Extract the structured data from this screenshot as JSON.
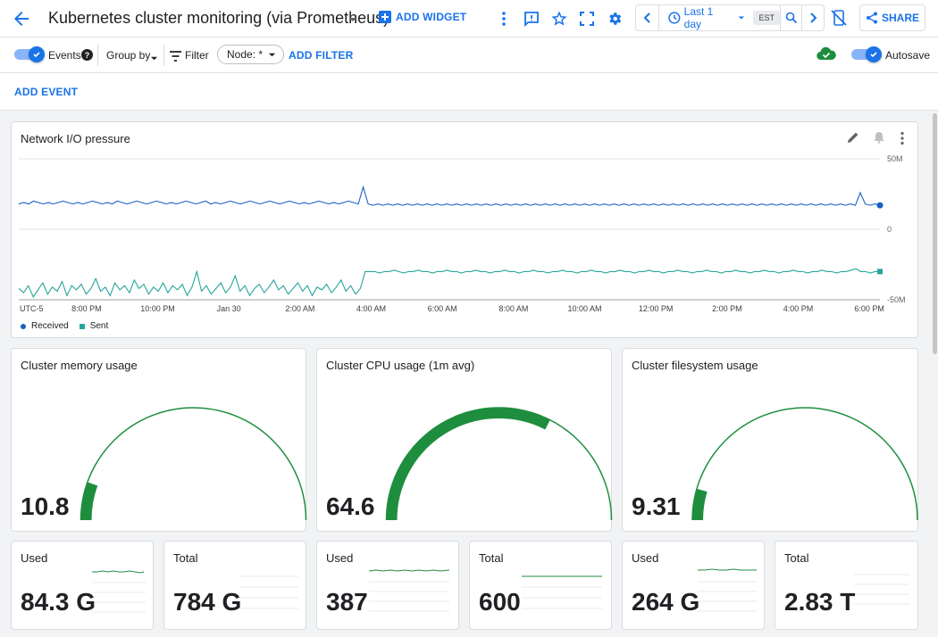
{
  "header": {
    "title": "Kubernetes cluster monitoring (via Prometheus)",
    "add_widget": "ADD WIDGET",
    "time_range": "Last 1 day",
    "timezone": "EST",
    "share": "SHARE"
  },
  "toolbar": {
    "events": "Events",
    "group_by": "Group by",
    "filter": "Filter",
    "node_chip": "Node: *",
    "add_filter": "ADD FILTER",
    "autosave": "Autosave"
  },
  "add_event": "ADD EVENT",
  "colors": {
    "accent": "#1a73e8",
    "received": "#1a5fc4",
    "sent": "#26a69a",
    "gauge": "#1e8e3e"
  },
  "chart": {
    "title": "Network I/O pressure",
    "y_ticks": [
      "50M",
      "0",
      "-50M"
    ],
    "x_ticks": [
      "UTC-5",
      "8:00 PM",
      "10:00 PM",
      "Jan 30",
      "2:00 AM",
      "4:00 AM",
      "6:00 AM",
      "8:00 AM",
      "10:00 AM",
      "12:00 PM",
      "2:00 PM",
      "4:00 PM",
      "6:00 PM"
    ],
    "legend": [
      {
        "label": "Received"
      },
      {
        "label": "Sent"
      }
    ]
  },
  "chart_data": {
    "type": "line",
    "ylim": [
      -50,
      50
    ],
    "yunit": "M",
    "series": [
      {
        "name": "Received",
        "values": [
          18,
          19,
          18,
          20,
          19,
          18,
          19,
          18,
          19,
          20,
          19,
          18,
          19,
          18,
          19,
          20,
          19,
          18,
          19,
          18,
          20,
          19,
          18,
          19,
          20,
          19,
          18,
          19,
          20,
          19,
          18,
          19,
          18,
          19,
          20,
          19,
          18,
          19,
          20,
          18,
          19,
          18,
          19,
          20,
          19,
          18,
          19,
          20,
          19,
          18,
          19,
          20,
          19,
          18,
          19,
          20,
          19,
          18,
          19,
          18,
          19,
          20,
          19,
          18,
          19,
          18,
          19,
          20,
          19,
          18,
          30,
          18,
          17,
          18,
          17,
          18,
          17,
          18,
          17,
          18,
          17,
          18,
          17,
          18,
          17,
          18,
          17,
          18,
          17,
          18,
          17,
          18,
          17,
          18,
          17,
          18,
          17,
          18,
          17,
          18,
          17,
          18,
          17,
          18,
          17,
          18,
          17,
          18,
          17,
          18,
          17,
          18,
          17,
          18,
          17,
          18,
          17,
          18,
          17,
          18,
          17,
          18,
          17,
          18,
          17,
          18,
          17,
          18,
          17,
          18,
          17,
          18,
          17,
          18,
          17,
          18,
          17,
          18,
          17,
          18,
          17,
          18,
          17,
          18,
          17,
          18,
          17,
          18,
          17,
          18,
          17,
          18,
          17,
          18,
          17,
          18,
          17,
          18,
          17,
          18,
          17,
          18,
          17,
          18,
          17,
          18,
          17,
          18,
          17,
          18,
          17,
          26,
          18,
          17,
          18,
          17
        ]
      },
      {
        "name": "Sent",
        "values": [
          -42,
          -45,
          -40,
          -48,
          -43,
          -38,
          -46,
          -41,
          -44,
          -37,
          -47,
          -40,
          -43,
          -39,
          -46,
          -42,
          -35,
          -44,
          -41,
          -47,
          -38,
          -43,
          -40,
          -45,
          -36,
          -42,
          -39,
          -46,
          -41,
          -44,
          -38,
          -45,
          -40,
          -43,
          -39,
          -47,
          -41,
          -30,
          -44,
          -40,
          -46,
          -42,
          -38,
          -45,
          -41,
          -33,
          -44,
          -40,
          -47,
          -42,
          -39,
          -45,
          -41,
          -36,
          -43,
          -40,
          -46,
          -42,
          -38,
          -44,
          -40,
          -47,
          -41,
          -43,
          -39,
          -45,
          -41,
          -36,
          -44,
          -40,
          -46,
          -42,
          -30,
          -30,
          -30,
          -31,
          -30,
          -30,
          -29,
          -30,
          -31,
          -30,
          -30,
          -29,
          -30,
          -30,
          -31,
          -30,
          -30,
          -29,
          -30,
          -30,
          -31,
          -30,
          -30,
          -29,
          -30,
          -30,
          -31,
          -30,
          -30,
          -29,
          -30,
          -30,
          -31,
          -30,
          -30,
          -29,
          -30,
          -30,
          -31,
          -30,
          -30,
          -29,
          -30,
          -30,
          -31,
          -30,
          -30,
          -29,
          -30,
          -30,
          -31,
          -30,
          -30,
          -29,
          -30,
          -30,
          -31,
          -30,
          -30,
          -29,
          -30,
          -30,
          -31,
          -30,
          -30,
          -29,
          -30,
          -30,
          -31,
          -30,
          -30,
          -29,
          -30,
          -30,
          -31,
          -30,
          -30,
          -29,
          -30,
          -30,
          -31,
          -30,
          -30,
          -29,
          -30,
          -30,
          -31,
          -30,
          -30,
          -29,
          -30,
          -30,
          -31,
          -30,
          -30,
          -29,
          -30,
          -30,
          -31,
          -30,
          -30,
          -29,
          -28,
          -30,
          -30,
          -31,
          -30,
          -30
        ]
      }
    ]
  },
  "gauges": [
    {
      "title": "Cluster memory usage",
      "value": "10.8",
      "fraction": 0.11
    },
    {
      "title": "Cluster CPU usage (1m avg)",
      "value": "64.6",
      "fraction": 0.65
    },
    {
      "title": "Cluster filesystem usage",
      "value": "9.31",
      "fraction": 0.09
    }
  ],
  "stats": [
    {
      "label": "Used",
      "value": "84.3 G"
    },
    {
      "label": "Total",
      "value": "784 G"
    },
    {
      "label": "Used",
      "value": "387"
    },
    {
      "label": "Total",
      "value": "600"
    },
    {
      "label": "Used",
      "value": "264 G"
    },
    {
      "label": "Total",
      "value": "2.83 T"
    }
  ]
}
